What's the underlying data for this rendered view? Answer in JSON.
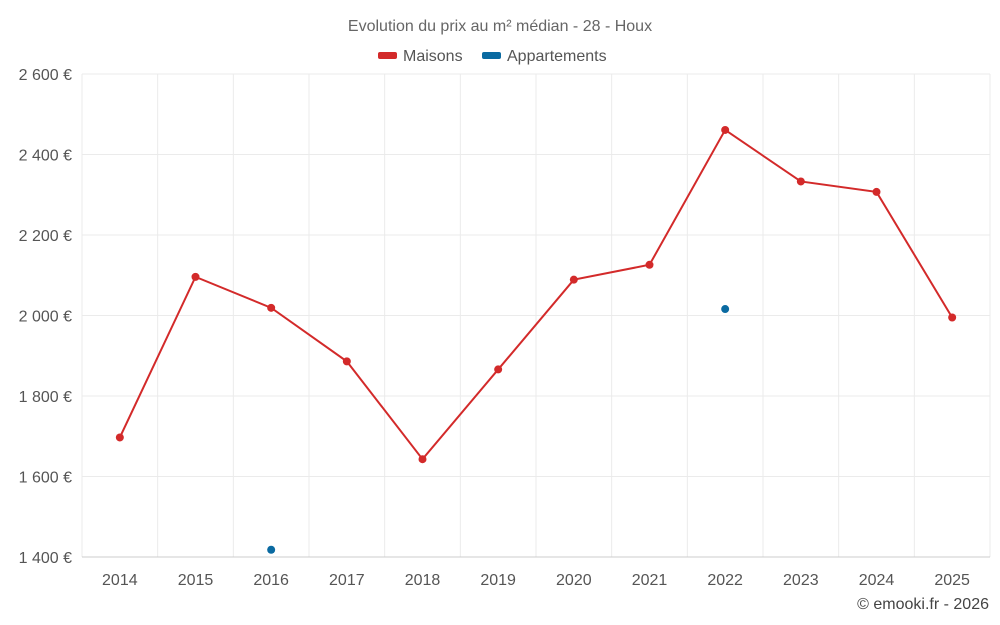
{
  "chart_data": {
    "type": "line",
    "title": "Evolution du prix au m² médian - 28 - Houx",
    "categories": [
      "2014",
      "2015",
      "2016",
      "2017",
      "2018",
      "2019",
      "2020",
      "2021",
      "2022",
      "2023",
      "2024",
      "2025"
    ],
    "series": [
      {
        "name": "Maisons",
        "color": "#d32a2a",
        "values": [
          1697,
          2096,
          2019,
          1886,
          1643,
          1866,
          2089,
          2126,
          2461,
          2333,
          2307,
          1995
        ]
      },
      {
        "name": "Appartements",
        "color": "#0a6aa1",
        "values": [
          null,
          null,
          1418,
          null,
          null,
          null,
          null,
          null,
          2016,
          null,
          null,
          null
        ]
      }
    ],
    "yticks": [
      1400,
      1600,
      1800,
      2000,
      2200,
      2400,
      2600
    ],
    "ytick_labels": [
      "1 400 €",
      "1 600 €",
      "1 800 €",
      "2 000 €",
      "2 200 €",
      "2 400 €",
      "2 600 €"
    ],
    "ylim": [
      1400,
      2600
    ],
    "xlabel": "",
    "ylabel": "",
    "legend_position": "top-center",
    "grid": true
  },
  "credit": "© emooki.fr - 2026"
}
